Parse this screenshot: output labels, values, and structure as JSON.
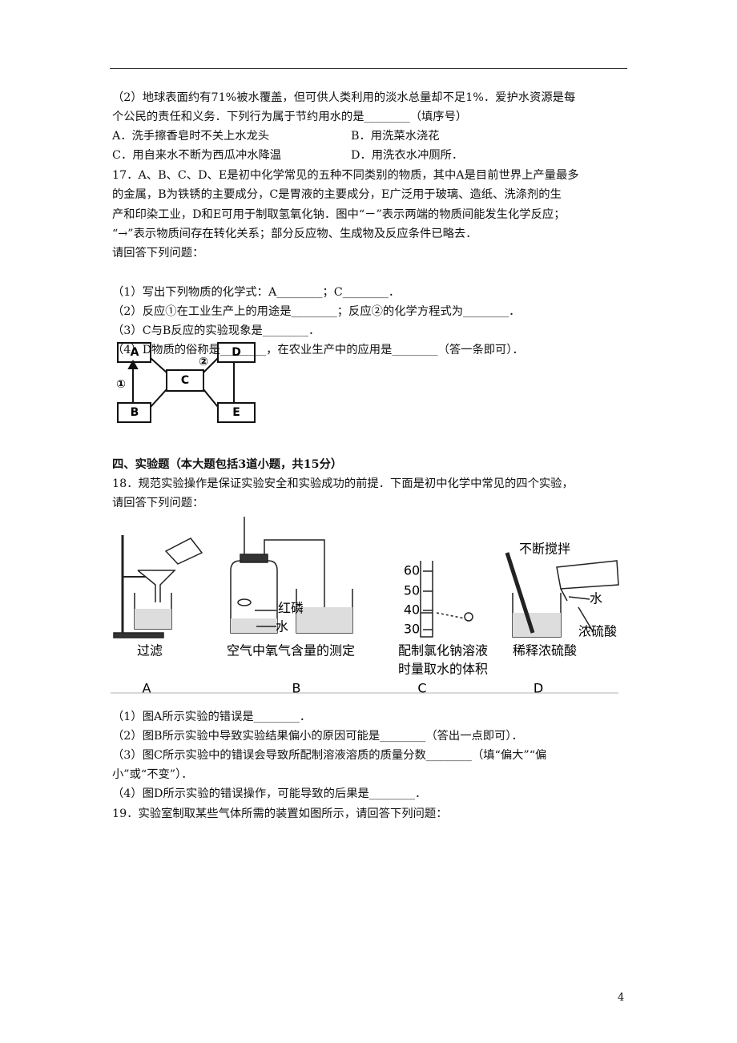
{
  "q16_part2": {
    "lines": [
      "（2）地球表面约有71%被水覆盖，但可供人类利用的淡水总量却不足1%．爱护水资源是每",
      "个公民的责任和义务．下列行为属于节约用水的是________（填序号）"
    ],
    "options": [
      "A．洗手擦香皂时不关上水龙头",
      "B．用洗菜水浇花",
      "C．用自来水不断为西瓜冲水降温",
      "D．用洗衣水冲厕所．"
    ]
  },
  "q17": {
    "stem_lines": [
      "17．A、B、C、D、E是初中化学常见的五种不同类别的物质，其中A是目前世界上产量最多",
      "的金属，B为铁锈的主要成分，C是胃液的主要成分，E广泛用于玻璃、造纸、洗涤剂的生",
      "产和印染工业，D和E可用于制取氢氧化钠．图中“－”表示两端的物质间能发生化学反应；",
      "“→”表示物质间存在转化关系；部分反应物、生成物及反应条件已略去．"
    ],
    "prompt": "请回答下列问题：",
    "subquestions": [
      "（1）写出下列物质的化学式：A________；C________．",
      "（2）反应①在工业生产上的用途是________；反应②的化学方程式为________．",
      "（3）C与B反应的实验现象是________．",
      "（4）D物质的俗称是________，在农业生产中的应用是________（答一条即可）．"
    ],
    "diagram": {
      "nodes": [
        "A",
        "B",
        "C",
        "D",
        "E"
      ],
      "reactions": [
        "①",
        "②"
      ]
    }
  },
  "section": {
    "title": "四、实验题（本大题包括3道小题，共15分）"
  },
  "q18": {
    "stem_lines": [
      "18．规范实验操作是保证实验安全和实验成功的前提．下面是初中化学中常见的四个实验，",
      "请回答下列问题："
    ],
    "figure": {
      "captions": [
        "过滤",
        "空气中氧气含量的测定",
        "配制氯化钠溶液",
        "时量取水的体积",
        "稀释浓硫酸"
      ],
      "letters": [
        "A",
        "B",
        "C",
        "D"
      ],
      "b_labels": [
        "红磷",
        "水"
      ],
      "c_scale": [
        "60",
        "50",
        "40",
        "30"
      ],
      "d_labels": [
        "不断搅拌",
        "水",
        "浓硫酸"
      ]
    },
    "subquestions": [
      "（1）图A所示实验的错误是________．",
      "（2）图B所示实验中导致实验结果偏小的原因可能是________（答出一点即可）．",
      "（3）图C所示实验中的错误会导致所配制溶液溶质的质量分数________（填“偏大”“偏",
      "小”或“不变”）．",
      "（4）图D所示实验的错误操作，可能导致的后果是________．"
    ]
  },
  "q19": {
    "stem": "19．实验室制取某些气体所需的装置如图所示，请回答下列问题："
  },
  "footer": {
    "page_number": "4"
  }
}
